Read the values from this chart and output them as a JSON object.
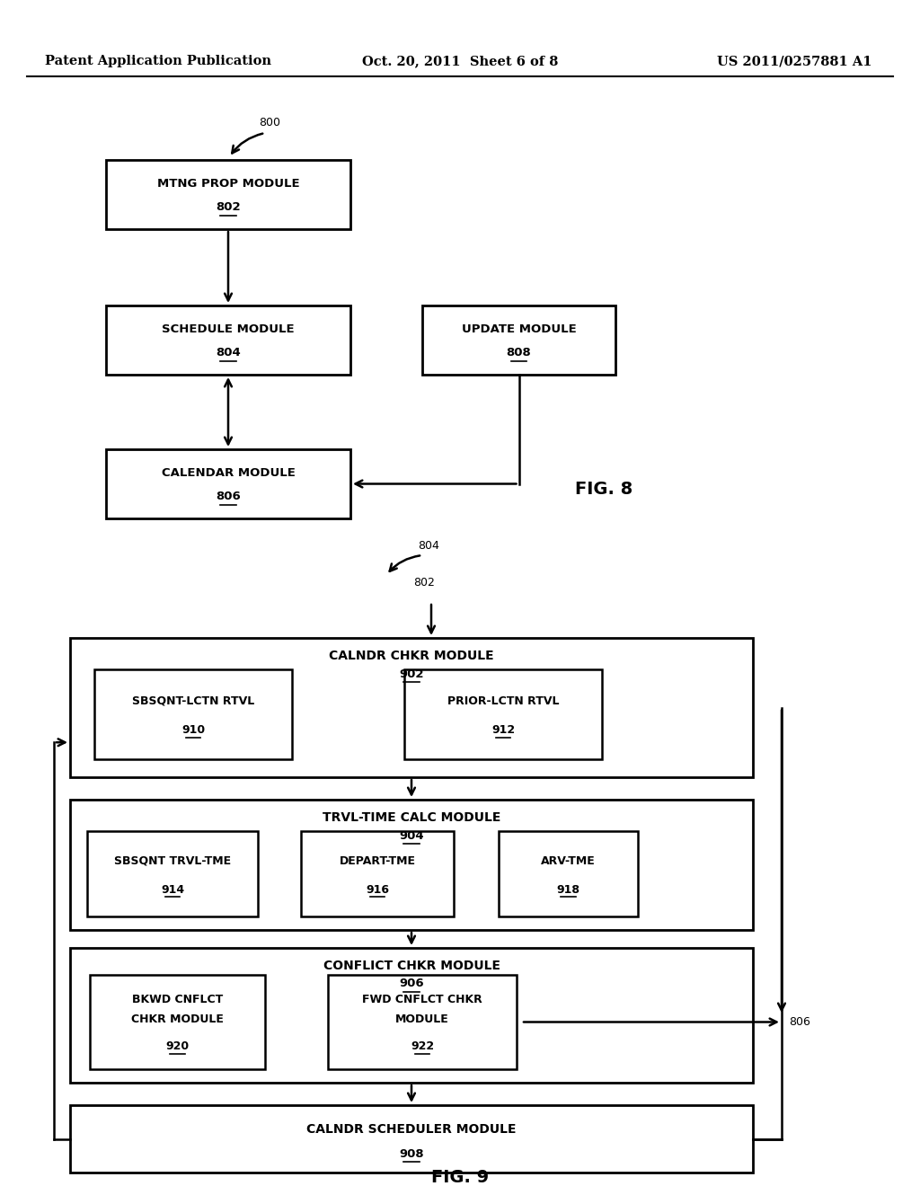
{
  "bg_color": "#ffffff",
  "header_left": "Patent Application Publication",
  "header_mid": "Oct. 20, 2011  Sheet 6 of 8",
  "header_right": "US 2011/0257881 A1",
  "fig8_caption": "FIG. 8",
  "fig9_caption": "FIG. 9"
}
